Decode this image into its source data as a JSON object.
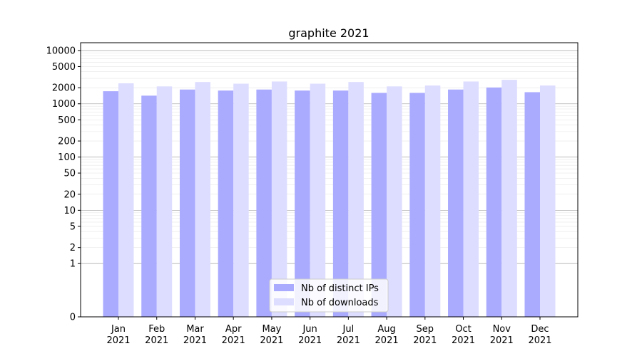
{
  "chart_data": {
    "type": "bar",
    "title": "graphite 2021",
    "xlabel": "",
    "ylabel": "",
    "yscale": "symlog",
    "ylim": [
      0,
      14000
    ],
    "yticks": [
      0,
      1,
      2,
      5,
      10,
      20,
      50,
      100,
      200,
      500,
      1000,
      2000,
      5000,
      10000
    ],
    "grid": "y major and minor",
    "legend_position": "bottom-center",
    "categories": [
      "Jan\n2021",
      "Feb\n2021",
      "Mar\n2021",
      "Apr\n2021",
      "May\n2021",
      "Jun\n2021",
      "Jul\n2021",
      "Aug\n2021",
      "Sep\n2021",
      "Oct\n2021",
      "Nov\n2021",
      "Dec\n2021"
    ],
    "series": [
      {
        "name": "Nb of distinct IPs",
        "color": "#aaaaff",
        "values": [
          1720,
          1420,
          1850,
          1770,
          1850,
          1770,
          1770,
          1600,
          1600,
          1850,
          2020,
          1650
        ]
      },
      {
        "name": "Nb of downloads",
        "color": "#ddddff",
        "values": [
          2420,
          2120,
          2560,
          2380,
          2620,
          2380,
          2560,
          2120,
          2200,
          2620,
          2820,
          2200
        ]
      }
    ]
  }
}
